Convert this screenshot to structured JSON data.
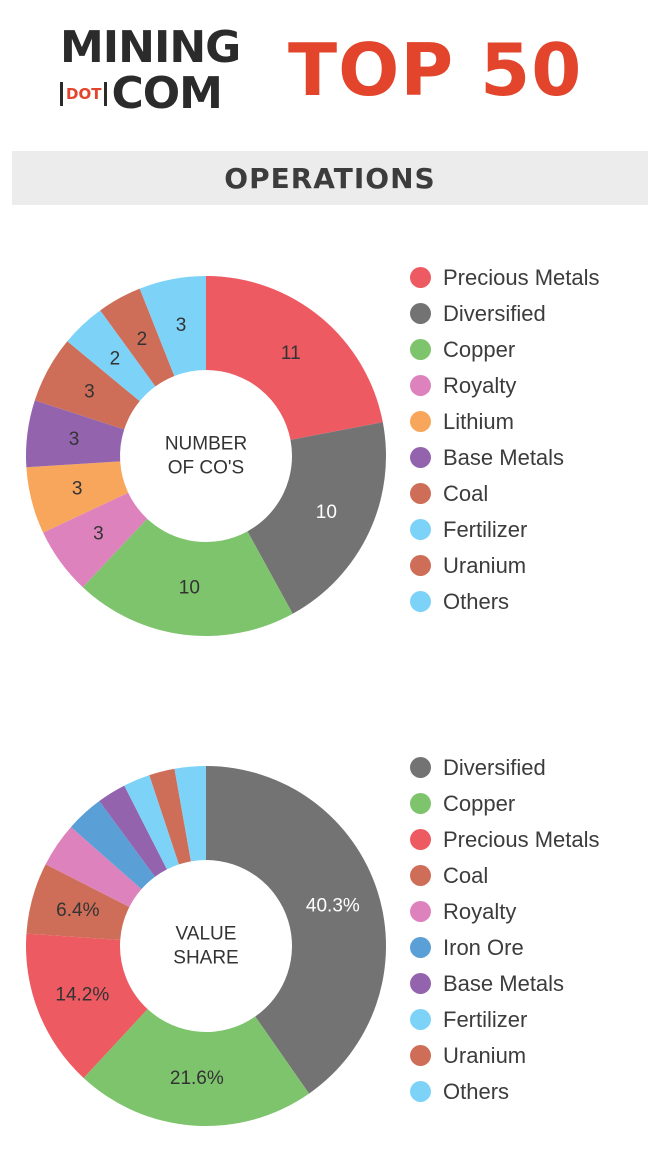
{
  "header": {
    "logo_line1": "MINING",
    "logo_dot": "DOT",
    "logo_line2": "COM",
    "title": "TOP 50"
  },
  "section_title": "OPERATIONS",
  "colors": {
    "precious_metals": "#ee5a62",
    "diversified": "#737373",
    "copper": "#7ec46d",
    "royalty": "#de82bd",
    "lithium": "#f8a65b",
    "base_metals": "#9364ad",
    "coal": "#cf6e58",
    "fertilizer": "#7dd3f7",
    "uranium": "#cf6e58",
    "others": "#7dd3f7",
    "iron_ore": "#5a9fd6",
    "accent": "#e2452b"
  },
  "chart_data": [
    {
      "type": "pie",
      "title": "",
      "center_label": "NUMBER OF CO'S",
      "center_lines": [
        "NUMBER",
        "OF CO'S"
      ],
      "categories": [
        "Precious Metals",
        "Diversified",
        "Copper",
        "Royalty",
        "Lithium",
        "Base Metals",
        "Coal",
        "Fertilizer",
        "Uranium",
        "Others"
      ],
      "values": [
        11,
        10,
        10,
        3,
        3,
        3,
        3,
        2,
        2,
        3
      ],
      "labels": [
        "11",
        "10",
        "10",
        "3",
        "3",
        "3",
        "3",
        "2",
        "2",
        "3"
      ],
      "colors": [
        "#ee5a62",
        "#737373",
        "#7ec46d",
        "#de82bd",
        "#f8a65b",
        "#9364ad",
        "#cf6e58",
        "#7dd3f7",
        "#cf6e58",
        "#7dd3f7"
      ],
      "legend": {
        "position": "right",
        "items": [
          {
            "label": "Precious Metals",
            "color": "#ee5a62"
          },
          {
            "label": "Diversified",
            "color": "#737373"
          },
          {
            "label": "Copper",
            "color": "#7ec46d"
          },
          {
            "label": "Royalty",
            "color": "#de82bd"
          },
          {
            "label": "Lithium",
            "color": "#f8a65b"
          },
          {
            "label": "Base Metals",
            "color": "#9364ad"
          },
          {
            "label": "Coal",
            "color": "#cf6e58"
          },
          {
            "label": "Fertilizer",
            "color": "#7dd3f7"
          },
          {
            "label": "Uranium",
            "color": "#cf6e58"
          },
          {
            "label": "Others",
            "color": "#7dd3f7"
          }
        ]
      }
    },
    {
      "type": "pie",
      "title": "",
      "center_label": "VALUE SHARE",
      "center_lines": [
        "VALUE",
        "SHARE"
      ],
      "unit": "%",
      "categories": [
        "Diversified",
        "Copper",
        "Precious Metals",
        "Coal",
        "Royalty",
        "Iron Ore",
        "Base Metals",
        "Fertilizer",
        "Uranium",
        "Others"
      ],
      "values": [
        40.3,
        21.6,
        14.2,
        6.4,
        4.0,
        3.4,
        2.6,
        2.4,
        2.3,
        2.8
      ],
      "labels": [
        "40.3%",
        "21.6%",
        "14.2%",
        "6.4%",
        "",
        "",
        "",
        "",
        "",
        ""
      ],
      "colors": [
        "#737373",
        "#7ec46d",
        "#ee5a62",
        "#cf6e58",
        "#de82bd",
        "#5a9fd6",
        "#9364ad",
        "#7dd3f7",
        "#cf6e58",
        "#7dd3f7"
      ],
      "legend": {
        "position": "right",
        "items": [
          {
            "label": "Diversified",
            "color": "#737373"
          },
          {
            "label": "Copper",
            "color": "#7ec46d"
          },
          {
            "label": "Precious Metals",
            "color": "#ee5a62"
          },
          {
            "label": "Coal",
            "color": "#cf6e58"
          },
          {
            "label": "Royalty",
            "color": "#de82bd"
          },
          {
            "label": "Iron Ore",
            "color": "#5a9fd6"
          },
          {
            "label": "Base Metals",
            "color": "#9364ad"
          },
          {
            "label": "Fertilizer",
            "color": "#7dd3f7"
          },
          {
            "label": "Uranium",
            "color": "#cf6e58"
          },
          {
            "label": "Others",
            "color": "#7dd3f7"
          }
        ]
      }
    }
  ]
}
